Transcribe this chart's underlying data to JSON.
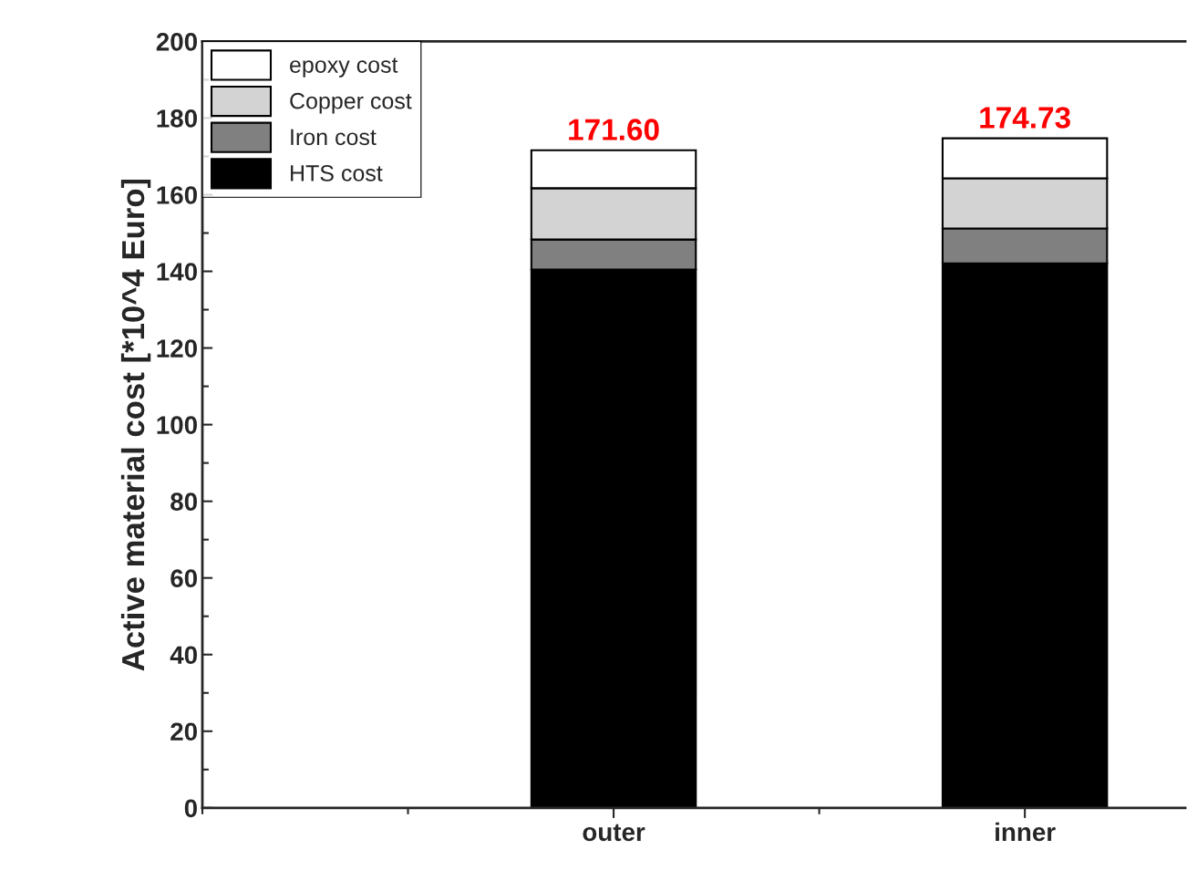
{
  "chart_data": {
    "type": "bar",
    "stacked": true,
    "ylabel": "Active material cost [*10^4 Euro]",
    "categories": [
      null,
      "outer",
      "inner"
    ],
    "series": [
      {
        "name": "HTS cost",
        "color": "#000000",
        "values": [
          null,
          140.5,
          142.1
        ]
      },
      {
        "name": "Iron cost",
        "color": "#808080",
        "values": [
          null,
          7.8,
          9.1
        ]
      },
      {
        "name": "Copper cost",
        "color": "#d3d3d3",
        "values": [
          null,
          13.4,
          13.1
        ]
      },
      {
        "name": "epoxy cost",
        "color": "#ffffff",
        "values": [
          null,
          9.9,
          10.43
        ]
      }
    ],
    "totals": [
      null,
      "171.60",
      "174.73"
    ],
    "ylim": [
      0,
      200
    ],
    "yticks": [
      0,
      20,
      40,
      60,
      80,
      100,
      120,
      140,
      160,
      180,
      200
    ],
    "legend": "top left",
    "grid": false
  }
}
